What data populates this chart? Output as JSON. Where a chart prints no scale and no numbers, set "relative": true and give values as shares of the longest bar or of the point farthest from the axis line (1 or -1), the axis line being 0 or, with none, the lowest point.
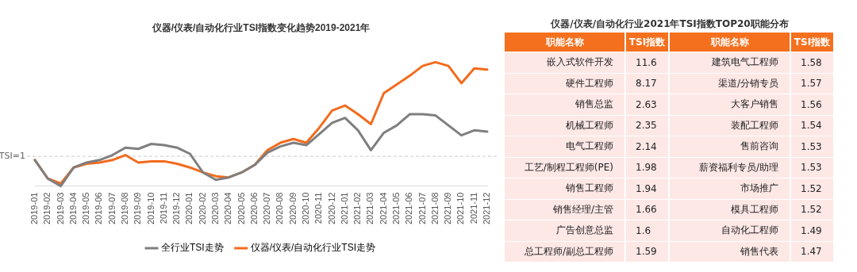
{
  "chart_data": [
    {
      "type": "line",
      "title": "仪器/仪表/自动化行业TSI指数变化趋势2019-2021年",
      "relative": true,
      "legend": "bottom",
      "grid": false,
      "marker": "none",
      "line_style": "solid",
      "categories": [
        "2019-01",
        "2019-02",
        "2019-03",
        "2019-04",
        "2019-05",
        "2019-06",
        "2019-07",
        "2019-08",
        "2019-09",
        "2019-10",
        "2019-11",
        "2019-12",
        "2020-01",
        "2020-02",
        "2020-03",
        "2020-04",
        "2020-05",
        "2020-06",
        "2020-07",
        "2020-08",
        "2020-09",
        "2020-10",
        "2020-11",
        "2020-12",
        "2021-01",
        "2021-02",
        "2021-03",
        "2021-04",
        "2021-05",
        "2021-06",
        "2021-07",
        "2021-08",
        "2021-09",
        "2021-10",
        "2021-11",
        "2021-12"
      ],
      "series": [
        {
          "name": "全行业TSI走势",
          "color": "#7f7f7f",
          "values": [
            0.21,
            0.06,
            0,
            0.15,
            0.19,
            0.21,
            0.25,
            0.31,
            0.3,
            0.34,
            0.33,
            0.31,
            0.26,
            0.11,
            0.05,
            0.07,
            0.11,
            0.17,
            0.27,
            0.32,
            0.35,
            0.33,
            0.42,
            0.51,
            0.55,
            0.45,
            0.29,
            0.43,
            0.49,
            0.58,
            0.58,
            0.57,
            0.49,
            0.41,
            0.45,
            0.44
          ]
        },
        {
          "name": "仪器/仪表/自动化行业TSI走势",
          "color": "#f26b1d",
          "values": [
            0.21,
            0.06,
            0.02,
            0.15,
            0.18,
            0.19,
            0.21,
            0.25,
            0.19,
            0.2,
            0.2,
            0.18,
            0.15,
            0.11,
            0.08,
            0.07,
            0.11,
            0.17,
            0.29,
            0.35,
            0.38,
            0.35,
            0.47,
            0.61,
            0.65,
            0.58,
            0.5,
            0.75,
            0.82,
            0.89,
            0.97,
            1,
            0.97,
            0.83,
            0.95,
            0.94
          ]
        }
      ],
      "annotations": [
        "TSI=1"
      ],
      "ref_lines": [
        {
          "axis": "y",
          "value": 0.24,
          "color": "#cccccc",
          "line_style": "dashed"
        }
      ]
    },
    {
      "type": "other",
      "title": "仪器/仪表/自动化行业2021年TSI指数TOP20职能分布",
      "annotations": [
        "职能名称",
        "TSI指数"
      ],
      "data_labels": true,
      "categories": [
        "嵌入式软件开发",
        "硬件工程师",
        "销售总监",
        "机械工程师",
        "电气工程师",
        "工艺/制程工程师(PE)",
        "销售工程师",
        "销售经理/主管",
        "广告创意总监",
        "总工程师/副总工程师",
        "建筑电气工程师",
        "渠道/分销专员",
        "大客户销售",
        "装配工程师",
        "售前咨询",
        "薪资福利专员/助理",
        "市场推广",
        "模具工程师",
        "自动化工程师",
        "销售代表"
      ],
      "values": [
        11.6,
        8.17,
        2.63,
        2.35,
        2.14,
        1.98,
        1.94,
        1.66,
        1.6,
        1.59,
        1.58,
        1.57,
        1.56,
        1.54,
        1.53,
        1.53,
        1.52,
        1.52,
        1.49,
        1.47
      ]
    }
  ]
}
